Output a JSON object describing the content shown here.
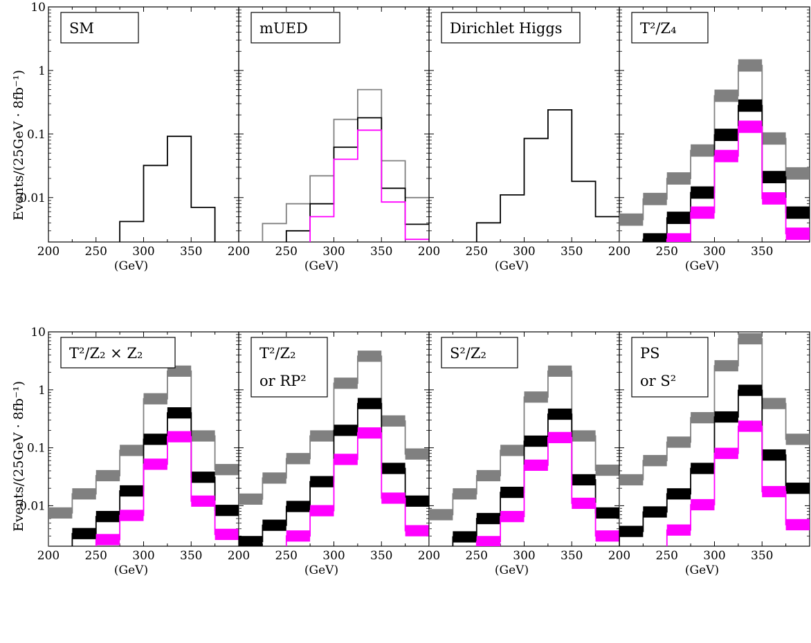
{
  "figure": {
    "ylabel": "Events/(25GeV · 8fb⁻¹)",
    "xlabel": "(GeV)",
    "xticks": [
      200,
      250,
      300,
      350
    ],
    "yticks": [
      {
        "value": 10,
        "label": "10"
      },
      {
        "value": 1,
        "label": "1"
      },
      {
        "value": 0.1,
        "label": "0.1"
      },
      {
        "value": 0.01,
        "label": "0.01"
      }
    ],
    "colors": {
      "gray": "#808080",
      "black": "#000000",
      "magenta": "#ff00ff"
    }
  },
  "chart_data": [
    {
      "type": "histogram",
      "label_lines": [
        "SM"
      ],
      "xlim": [
        200,
        400
      ],
      "ylim": [
        0.002,
        10
      ],
      "yscale": "log",
      "bin_edges": [
        200,
        225,
        250,
        275,
        300,
        325,
        350,
        375,
        400
      ],
      "series": [
        {
          "color": "black",
          "values": [
            null,
            null,
            null,
            0.0042,
            0.032,
            0.092,
            0.007,
            null
          ]
        }
      ]
    },
    {
      "type": "histogram",
      "label_lines": [
        "mUED"
      ],
      "xlim": [
        200,
        400
      ],
      "ylim": [
        0.002,
        10
      ],
      "yscale": "log",
      "bin_edges": [
        200,
        225,
        250,
        275,
        300,
        325,
        350,
        375,
        400
      ],
      "series": [
        {
          "color": "gray",
          "values": [
            null,
            0.0039,
            0.008,
            0.022,
            0.17,
            0.5,
            0.038,
            0.01
          ]
        },
        {
          "color": "black",
          "values": [
            null,
            null,
            0.003,
            0.008,
            0.062,
            0.18,
            0.014,
            0.0038
          ]
        },
        {
          "color": "magenta",
          "values": [
            null,
            null,
            null,
            0.005,
            0.04,
            0.115,
            0.0085,
            0.0022
          ]
        }
      ]
    },
    {
      "type": "histogram",
      "label_lines": [
        "Dirichlet Higgs"
      ],
      "xlim": [
        200,
        400
      ],
      "ylim": [
        0.002,
        10
      ],
      "yscale": "log",
      "bin_edges": [
        200,
        225,
        250,
        275,
        300,
        325,
        350,
        375,
        400
      ],
      "series": [
        {
          "color": "black",
          "values": [
            null,
            null,
            0.004,
            0.011,
            0.085,
            0.24,
            0.018,
            0.005
          ]
        }
      ]
    },
    {
      "type": "histogram",
      "label_lines": [
        "T²/Z₄"
      ],
      "xlim": [
        200,
        400
      ],
      "ylim": [
        0.002,
        10
      ],
      "yscale": "log",
      "bin_edges": [
        200,
        225,
        250,
        275,
        300,
        325,
        350,
        375,
        400
      ],
      "series": [
        {
          "color": "gray",
          "band": true,
          "values": [
            0.0045,
            0.0095,
            0.02,
            0.055,
            0.4,
            1.2,
            0.085,
            0.024
          ]
        },
        {
          "color": "black",
          "band": true,
          "values": [
            null,
            0.0022,
            0.0048,
            0.012,
            0.097,
            0.28,
            0.021,
            0.0058
          ]
        },
        {
          "color": "magenta",
          "band": true,
          "values": [
            null,
            null,
            0.0022,
            0.0058,
            0.045,
            0.13,
            0.0097,
            0.0027
          ]
        }
      ]
    },
    {
      "type": "histogram",
      "label_lines": [
        "T²/Z₂ × Z₂"
      ],
      "xlim": [
        200,
        400
      ],
      "ylim": [
        0.002,
        10
      ],
      "yscale": "log",
      "bin_edges": [
        200,
        225,
        250,
        275,
        300,
        325,
        350,
        375,
        400
      ],
      "series": [
        {
          "color": "gray",
          "band": true,
          "values": [
            0.0075,
            0.016,
            0.033,
            0.09,
            0.7,
            2.1,
            0.16,
            0.042
          ]
        },
        {
          "color": "black",
          "band": true,
          "values": [
            null,
            0.0033,
            0.0065,
            0.018,
            0.14,
            0.4,
            0.031,
            0.0083
          ]
        },
        {
          "color": "magenta",
          "band": true,
          "values": [
            null,
            null,
            0.0026,
            0.0068,
            0.052,
            0.155,
            0.012,
            0.0032
          ]
        }
      ]
    },
    {
      "type": "histogram",
      "label_lines": [
        "T²/Z₂",
        "or RP²"
      ],
      "xlim": [
        200,
        400
      ],
      "ylim": [
        0.002,
        10
      ],
      "yscale": "log",
      "bin_edges": [
        200,
        225,
        250,
        275,
        300,
        325,
        350,
        375,
        400
      ],
      "series": [
        {
          "color": "gray",
          "band": true,
          "values": [
            0.013,
            0.03,
            0.065,
            0.16,
            1.3,
            3.8,
            0.29,
            0.078
          ]
        },
        {
          "color": "black",
          "band": true,
          "values": [
            0.0024,
            0.0046,
            0.0097,
            0.026,
            0.2,
            0.58,
            0.044,
            0.012
          ]
        },
        {
          "color": "magenta",
          "band": true,
          "values": [
            null,
            null,
            0.003,
            0.0082,
            0.063,
            0.18,
            0.0135,
            0.0037
          ]
        }
      ]
    },
    {
      "type": "histogram",
      "label_lines": [
        "S²/Z₂"
      ],
      "xlim": [
        200,
        400
      ],
      "ylim": [
        0.002,
        10
      ],
      "yscale": "log",
      "bin_edges": [
        200,
        225,
        250,
        275,
        300,
        325,
        350,
        375,
        400
      ],
      "series": [
        {
          "color": "gray",
          "band": true,
          "values": [
            0.007,
            0.016,
            0.033,
            0.09,
            0.75,
            2.1,
            0.16,
            0.041
          ]
        },
        {
          "color": "black",
          "band": true,
          "values": [
            null,
            0.0029,
            0.006,
            0.017,
            0.13,
            0.38,
            0.028,
            0.0075
          ]
        },
        {
          "color": "magenta",
          "band": true,
          "values": [
            null,
            null,
            0.0024,
            0.0065,
            0.05,
            0.15,
            0.011,
            0.003
          ]
        }
      ]
    },
    {
      "type": "histogram",
      "label_lines": [
        "PS",
        "or S²"
      ],
      "xlim": [
        200,
        400
      ],
      "ylim": [
        0.002,
        10
      ],
      "yscale": "log",
      "bin_edges": [
        200,
        225,
        250,
        275,
        300,
        325,
        350,
        375,
        400
      ],
      "series": [
        {
          "color": "gray",
          "band": true,
          "values": [
            0.028,
            0.06,
            0.125,
            0.33,
            2.6,
            7.6,
            0.58,
            0.14
          ]
        },
        {
          "color": "black",
          "band": true,
          "values": [
            0.0036,
            0.0078,
            0.016,
            0.044,
            0.34,
            0.98,
            0.075,
            0.02
          ]
        },
        {
          "color": "magenta",
          "band": true,
          "values": [
            null,
            null,
            0.0038,
            0.0104,
            0.08,
            0.235,
            0.0175,
            0.0047
          ]
        }
      ]
    }
  ]
}
